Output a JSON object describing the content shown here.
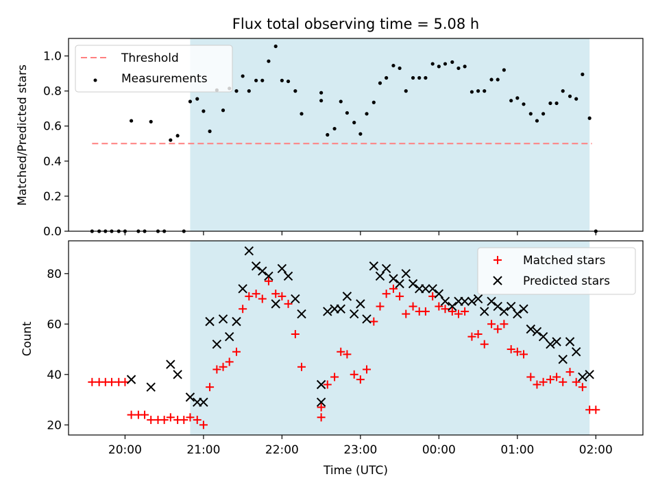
{
  "figure_title": "Flux total observing time = 5.08 h",
  "chart_data": [
    {
      "type": "scatter",
      "title": "Flux total observing time = 5.08 h",
      "xlabel": "",
      "ylabel": "Matched/Predicted stars",
      "ylim": [
        0,
        1.1
      ],
      "yticks": [
        0.0,
        0.2,
        0.4,
        0.6,
        0.8,
        1.0
      ],
      "ytick_labels": [
        "0.0",
        "0.2",
        "0.4",
        "0.6",
        "0.8",
        "1.0"
      ],
      "xlim_hours": [
        19.28,
        26.6
      ],
      "xticks_hours": [
        20,
        21,
        22,
        23,
        24,
        25,
        26
      ],
      "shaded_region_hours": [
        20.83,
        25.92
      ],
      "shaded_color": "#add8e6",
      "legend_position": "upper left",
      "threshold": {
        "name": "Threshold",
        "value": 0.5,
        "x_range_hours": [
          19.58,
          25.95
        ],
        "color": "#ff7f7f",
        "style": "dashed"
      },
      "series": [
        {
          "name": "Measurements",
          "marker": "dot",
          "color": "#000000",
          "points": [
            [
              19.58,
              0
            ],
            [
              19.67,
              0
            ],
            [
              19.75,
              0
            ],
            [
              19.83,
              0
            ],
            [
              19.92,
              0
            ],
            [
              20.0,
              0
            ],
            [
              20.08,
              0.63
            ],
            [
              20.17,
              0
            ],
            [
              20.25,
              0
            ],
            [
              20.33,
              0.625
            ],
            [
              20.42,
              0
            ],
            [
              20.5,
              0
            ],
            [
              20.58,
              0.52
            ],
            [
              20.67,
              0.545
            ],
            [
              20.75,
              0
            ],
            [
              20.83,
              0.74
            ],
            [
              20.92,
              0.755
            ],
            [
              21.0,
              0.685
            ],
            [
              21.08,
              0.57
            ],
            [
              21.17,
              0.805
            ],
            [
              21.25,
              0.69
            ],
            [
              21.33,
              0.815
            ],
            [
              21.42,
              0.8
            ],
            [
              21.5,
              0.885
            ],
            [
              21.58,
              0.8
            ],
            [
              21.67,
              0.86
            ],
            [
              21.75,
              0.86
            ],
            [
              21.83,
              0.97
            ],
            [
              21.92,
              1.055
            ],
            [
              22.0,
              0.86
            ],
            [
              22.08,
              0.855
            ],
            [
              22.17,
              0.8
            ],
            [
              22.25,
              0.67
            ],
            [
              22.5,
              0.79
            ],
            [
              22.5,
              0.745
            ],
            [
              22.58,
              0.55
            ],
            [
              22.67,
              0.585
            ],
            [
              22.75,
              0.74
            ],
            [
              22.83,
              0.675
            ],
            [
              22.92,
              0.62
            ],
            [
              23.0,
              0.555
            ],
            [
              23.08,
              0.67
            ],
            [
              23.17,
              0.735
            ],
            [
              23.25,
              0.845
            ],
            [
              23.33,
              0.875
            ],
            [
              23.42,
              0.945
            ],
            [
              23.5,
              0.93
            ],
            [
              23.58,
              0.8
            ],
            [
              23.67,
              0.875
            ],
            [
              23.75,
              0.875
            ],
            [
              23.83,
              0.875
            ],
            [
              23.92,
              0.955
            ],
            [
              24.0,
              0.94
            ],
            [
              24.08,
              0.955
            ],
            [
              24.17,
              0.965
            ],
            [
              24.25,
              0.93
            ],
            [
              24.33,
              0.94
            ],
            [
              24.42,
              0.795
            ],
            [
              24.5,
              0.8
            ],
            [
              24.58,
              0.8
            ],
            [
              24.67,
              0.865
            ],
            [
              24.75,
              0.865
            ],
            [
              24.83,
              0.92
            ],
            [
              24.92,
              0.745
            ],
            [
              25.0,
              0.76
            ],
            [
              25.08,
              0.725
            ],
            [
              25.17,
              0.67
            ],
            [
              25.25,
              0.63
            ],
            [
              25.33,
              0.67
            ],
            [
              25.42,
              0.73
            ],
            [
              25.5,
              0.73
            ],
            [
              25.58,
              0.8
            ],
            [
              25.67,
              0.77
            ],
            [
              25.75,
              0.755
            ],
            [
              25.83,
              0.895
            ],
            [
              25.92,
              0.645
            ],
            [
              26.0,
              0
            ]
          ]
        }
      ]
    },
    {
      "type": "scatter",
      "title": "",
      "xlabel": "Time (UTC)",
      "ylabel": "Count",
      "ylim": [
        16,
        93
      ],
      "yticks": [
        20,
        40,
        60,
        80
      ],
      "ytick_labels": [
        "20",
        "40",
        "60",
        "80"
      ],
      "xlim_hours": [
        19.28,
        26.6
      ],
      "xticks_hours": [
        20,
        21,
        22,
        23,
        24,
        25,
        26
      ],
      "xtick_labels": [
        "20:00",
        "21:00",
        "22:00",
        "23:00",
        "00:00",
        "01:00",
        "02:00"
      ],
      "shaded_region_hours": [
        20.83,
        25.92
      ],
      "shaded_color": "#add8e6",
      "legend_position": "upper right",
      "series": [
        {
          "name": "Matched stars",
          "marker": "plus",
          "color": "#ff0000",
          "points": [
            [
              19.58,
              37
            ],
            [
              19.67,
              37
            ],
            [
              19.75,
              37
            ],
            [
              19.83,
              37
            ],
            [
              19.92,
              37
            ],
            [
              20.0,
              37
            ],
            [
              20.08,
              24
            ],
            [
              20.17,
              24
            ],
            [
              20.25,
              24
            ],
            [
              20.33,
              22
            ],
            [
              20.42,
              22
            ],
            [
              20.5,
              22
            ],
            [
              20.58,
              23
            ],
            [
              20.67,
              22
            ],
            [
              20.75,
              22
            ],
            [
              20.83,
              23
            ],
            [
              20.92,
              22
            ],
            [
              21.0,
              20
            ],
            [
              21.08,
              35
            ],
            [
              21.17,
              42
            ],
            [
              21.25,
              43
            ],
            [
              21.33,
              45
            ],
            [
              21.42,
              49
            ],
            [
              21.5,
              66
            ],
            [
              21.58,
              71
            ],
            [
              21.67,
              72
            ],
            [
              21.75,
              70
            ],
            [
              21.83,
              77
            ],
            [
              21.92,
              72
            ],
            [
              22.0,
              71
            ],
            [
              22.08,
              68
            ],
            [
              22.17,
              56
            ],
            [
              22.25,
              43
            ],
            [
              22.5,
              27
            ],
            [
              22.5,
              23
            ],
            [
              22.58,
              36
            ],
            [
              22.67,
              39
            ],
            [
              22.75,
              49
            ],
            [
              22.83,
              48
            ],
            [
              22.92,
              40
            ],
            [
              23.0,
              38
            ],
            [
              23.08,
              42
            ],
            [
              23.17,
              61
            ],
            [
              23.25,
              67
            ],
            [
              23.33,
              72
            ],
            [
              23.42,
              74
            ],
            [
              23.5,
              71
            ],
            [
              23.58,
              64
            ],
            [
              23.67,
              67
            ],
            [
              23.75,
              65
            ],
            [
              23.83,
              65
            ],
            [
              23.92,
              71
            ],
            [
              24.0,
              67
            ],
            [
              24.08,
              66
            ],
            [
              24.17,
              65
            ],
            [
              24.25,
              64
            ],
            [
              24.33,
              65
            ],
            [
              24.42,
              55
            ],
            [
              24.5,
              56
            ],
            [
              24.58,
              52
            ],
            [
              24.67,
              60
            ],
            [
              24.75,
              58
            ],
            [
              24.83,
              60
            ],
            [
              24.92,
              50
            ],
            [
              25.0,
              49
            ],
            [
              25.08,
              48
            ],
            [
              25.17,
              39
            ],
            [
              25.25,
              36
            ],
            [
              25.33,
              37
            ],
            [
              25.42,
              38
            ],
            [
              25.5,
              39
            ],
            [
              25.58,
              37
            ],
            [
              25.67,
              41
            ],
            [
              25.75,
              37
            ],
            [
              25.83,
              35
            ],
            [
              25.92,
              26
            ],
            [
              26.0,
              26
            ]
          ]
        },
        {
          "name": "Predicted stars",
          "marker": "x",
          "color": "#000000",
          "points": [
            [
              20.08,
              38
            ],
            [
              20.33,
              35
            ],
            [
              20.58,
              44
            ],
            [
              20.67,
              40
            ],
            [
              20.83,
              31
            ],
            [
              20.92,
              29
            ],
            [
              21.0,
              29
            ],
            [
              21.08,
              61
            ],
            [
              21.17,
              52
            ],
            [
              21.25,
              62
            ],
            [
              21.33,
              55
            ],
            [
              21.42,
              61
            ],
            [
              21.5,
              74
            ],
            [
              21.58,
              89
            ],
            [
              21.67,
              83
            ],
            [
              21.75,
              81
            ],
            [
              21.83,
              79
            ],
            [
              21.92,
              68
            ],
            [
              22.0,
              82
            ],
            [
              22.08,
              79
            ],
            [
              22.17,
              70
            ],
            [
              22.25,
              64
            ],
            [
              22.5,
              36
            ],
            [
              22.5,
              29
            ],
            [
              22.58,
              65
            ],
            [
              22.67,
              66
            ],
            [
              22.75,
              66
            ],
            [
              22.83,
              71
            ],
            [
              22.92,
              64
            ],
            [
              23.0,
              68
            ],
            [
              23.08,
              62
            ],
            [
              23.17,
              83
            ],
            [
              23.25,
              79
            ],
            [
              23.33,
              82
            ],
            [
              23.42,
              78
            ],
            [
              23.5,
              76
            ],
            [
              23.58,
              80
            ],
            [
              23.67,
              76
            ],
            [
              23.75,
              74
            ],
            [
              23.83,
              74
            ],
            [
              23.92,
              74
            ],
            [
              24.0,
              72
            ],
            [
              24.08,
              69
            ],
            [
              24.17,
              67
            ],
            [
              24.25,
              69
            ],
            [
              24.33,
              69
            ],
            [
              24.42,
              69
            ],
            [
              24.5,
              70
            ],
            [
              24.58,
              65
            ],
            [
              24.67,
              69
            ],
            [
              24.75,
              67
            ],
            [
              24.83,
              65
            ],
            [
              24.92,
              67
            ],
            [
              25.0,
              64
            ],
            [
              25.08,
              66
            ],
            [
              25.17,
              58
            ],
            [
              25.25,
              57
            ],
            [
              25.33,
              55
            ],
            [
              25.42,
              52
            ],
            [
              25.5,
              53
            ],
            [
              25.58,
              46
            ],
            [
              25.67,
              53
            ],
            [
              25.75,
              49
            ],
            [
              25.83,
              39
            ],
            [
              25.92,
              40
            ]
          ]
        }
      ]
    }
  ]
}
